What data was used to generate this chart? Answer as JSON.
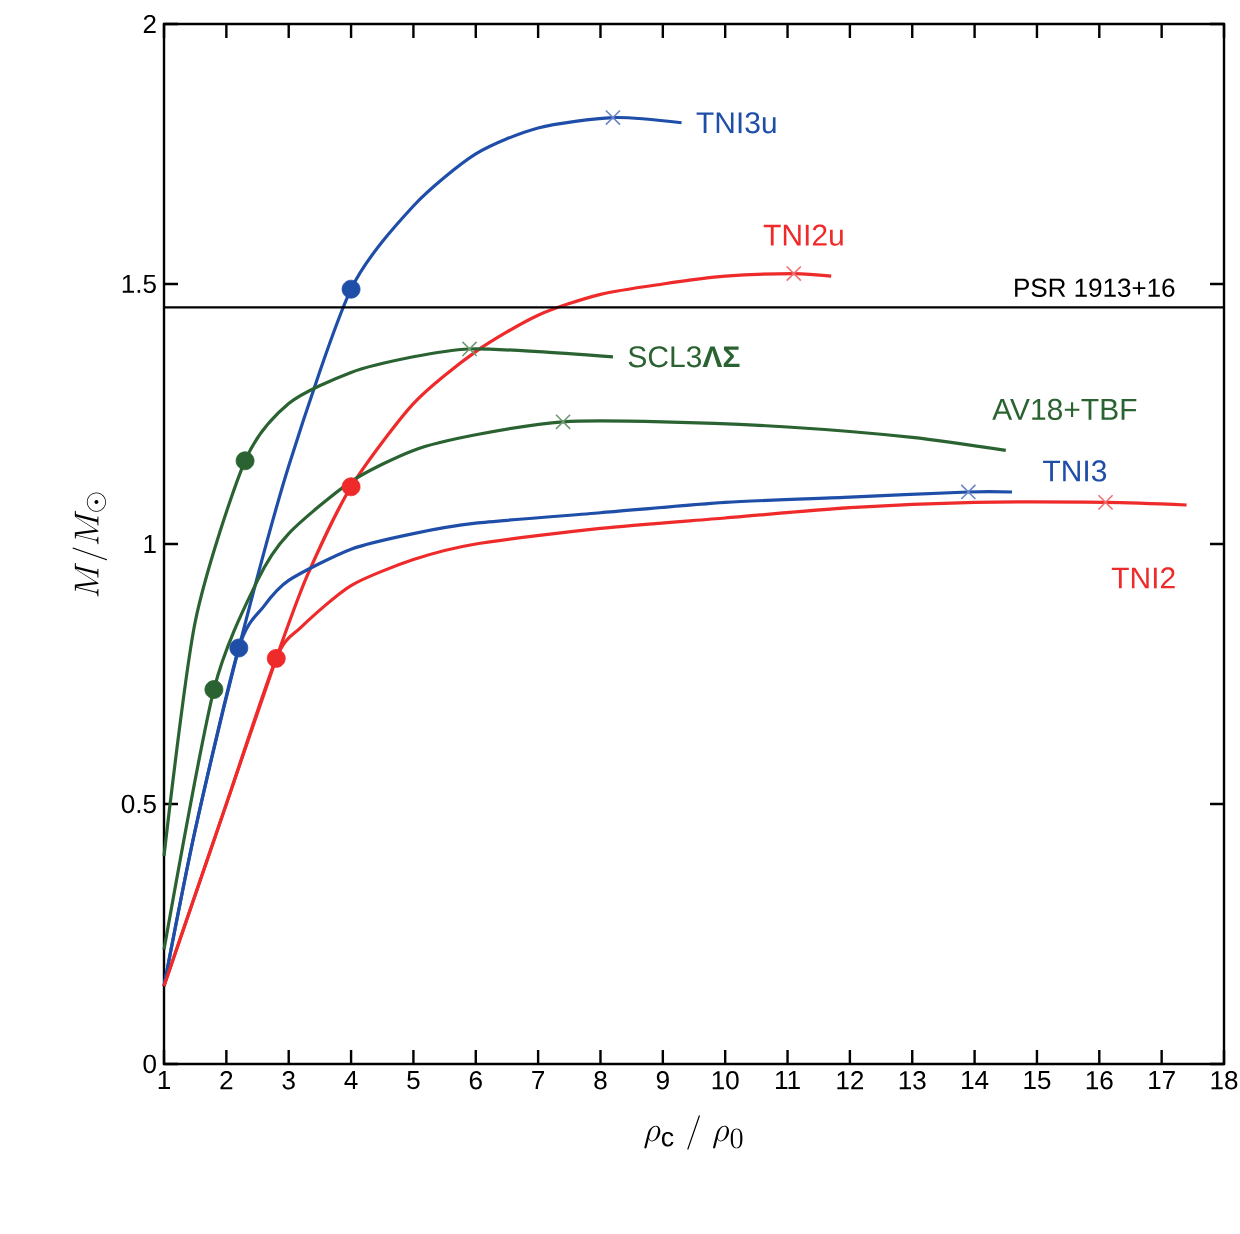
{
  "chart_data": {
    "type": "line",
    "xlabel": "\\rho_{\\mathrm{c}}\\ /\\ \\rho_{0}",
    "ylabel": "M/M_{\\odot}",
    "xlim": [
      1,
      18
    ],
    "ylim": [
      0,
      2
    ],
    "xticks": [
      1,
      2,
      3,
      4,
      5,
      6,
      7,
      8,
      9,
      10,
      11,
      12,
      13,
      14,
      15,
      16,
      17,
      18
    ],
    "yticks": [
      0,
      0.5,
      1,
      1.5,
      2
    ],
    "marker": "none",
    "line_style": "solid",
    "ref_lines": [
      {
        "axis": "y",
        "value": 1.455,
        "label": "PSR 1913+16",
        "color": "#000000"
      }
    ],
    "series": [
      {
        "name": "TNI3u",
        "color": "#1f4ea8",
        "x": [
          1,
          1.5,
          2.2,
          3,
          4,
          5,
          6,
          7,
          8.2,
          9.3
        ],
        "values": [
          0.15,
          0.45,
          0.8,
          1.15,
          1.49,
          1.65,
          1.75,
          1.8,
          1.82,
          1.81
        ]
      },
      {
        "name": "TNI2u",
        "color": "#ee2a2a",
        "x": [
          1,
          2,
          2.8,
          3.3,
          4,
          5,
          6,
          7,
          8,
          9,
          10,
          11.1,
          11.7
        ],
        "values": [
          0.15,
          0.5,
          0.78,
          0.94,
          1.11,
          1.27,
          1.37,
          1.44,
          1.48,
          1.5,
          1.515,
          1.52,
          1.515
        ]
      },
      {
        "name": "SCL3**ΛΣ**",
        "color": "#2a6331",
        "x": [
          1,
          1.5,
          2.3,
          3,
          4,
          5,
          5.9,
          7,
          8.2
        ],
        "values": [
          0.4,
          0.85,
          1.16,
          1.27,
          1.33,
          1.36,
          1.375,
          1.37,
          1.36
        ]
      },
      {
        "name": "AV18+TBF",
        "color": "#2a6331",
        "x": [
          1,
          1.8,
          2.5,
          3,
          4,
          5,
          6,
          7.4,
          9,
          11,
          13,
          14.5
        ],
        "values": [
          0.22,
          0.72,
          0.93,
          1.02,
          1.12,
          1.18,
          1.21,
          1.235,
          1.235,
          1.225,
          1.205,
          1.18
        ]
      },
      {
        "name": "TNI3",
        "color": "#1f4ea8",
        "x": [
          1,
          1.5,
          2.2,
          2.6,
          3,
          4,
          5,
          6,
          8,
          10,
          12,
          13.9,
          14.6
        ],
        "values": [
          0.15,
          0.45,
          0.8,
          0.88,
          0.93,
          0.99,
          1.02,
          1.04,
          1.06,
          1.08,
          1.09,
          1.1,
          1.1
        ]
      },
      {
        "name": "TNI2",
        "color": "#ee2a2a",
        "x": [
          1,
          2,
          2.8,
          3.2,
          4,
          5,
          6,
          8,
          10,
          12,
          14,
          16.1,
          17.4
        ],
        "values": [
          0.15,
          0.5,
          0.78,
          0.84,
          0.92,
          0.97,
          1.0,
          1.03,
          1.05,
          1.07,
          1.08,
          1.08,
          1.075
        ]
      },
      {
        "type": "scatter",
        "marker": "circle",
        "x": [
          2.2,
          4,
          2.8,
          4,
          1.8,
          2.3
        ],
        "values": [
          0.8,
          1.49,
          0.78,
          1.11,
          0.72,
          1.16
        ],
        "colors": [
          "#1f4ea8",
          "#1f4ea8",
          "#ee2a2a",
          "#ee2a2a",
          "#2a6331",
          "#2a6331"
        ]
      },
      {
        "type": "scatter",
        "marker": "cross",
        "x": [
          8.2,
          13.9,
          11.1,
          16.1,
          5.9,
          7.4
        ],
        "values": [
          1.82,
          1.1,
          1.52,
          1.08,
          1.375,
          1.235
        ],
        "colors": [
          "#6a86c8",
          "#6a86c8",
          "#f07070",
          "#f07070",
          "#6f9a74",
          "#6f9a74"
        ]
      }
    ]
  }
}
